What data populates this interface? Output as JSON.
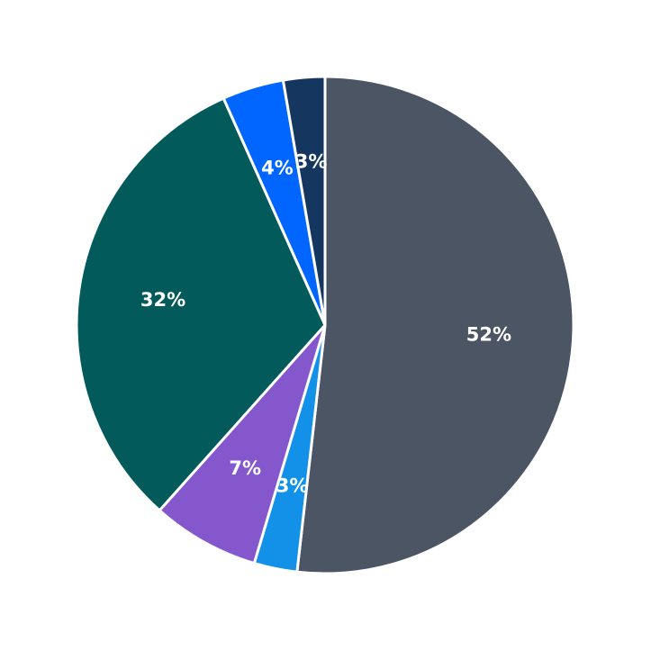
{
  "chart_data": {
    "type": "pie",
    "title": "",
    "start_angle_deg": 90,
    "direction": "clockwise",
    "slices": [
      {
        "label": "52%",
        "value": 51.8,
        "color": "#4b5563"
      },
      {
        "label": "3%",
        "value": 2.8,
        "color": "#1390e8"
      },
      {
        "label": "7%",
        "value": 7.0,
        "color": "#8457cc"
      },
      {
        "label": "32%",
        "value": 31.7,
        "color": "#025a5a"
      },
      {
        "label": "4%",
        "value": 4.0,
        "color": "#0066ff"
      },
      {
        "label": "3%",
        "value": 2.7,
        "color": "#15375f"
      }
    ],
    "legend": null,
    "edge_color": "#ffffff"
  }
}
